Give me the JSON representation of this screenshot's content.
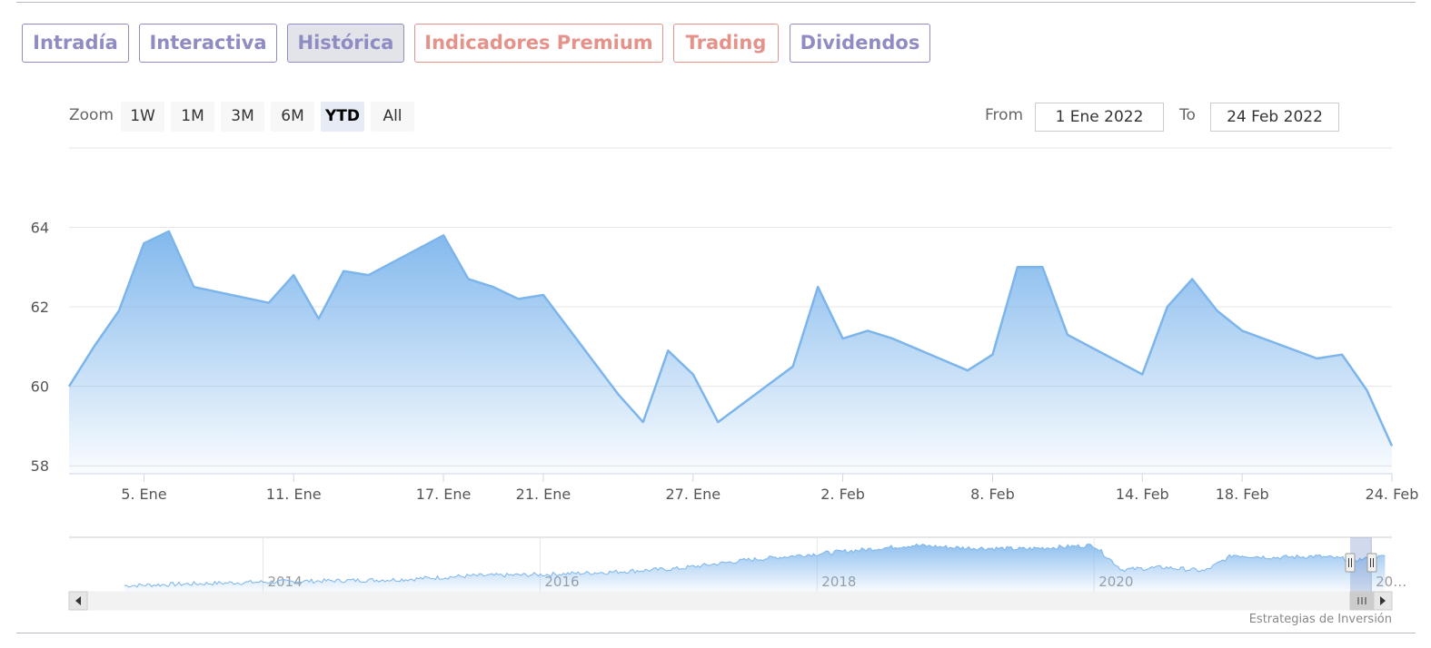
{
  "tabs": [
    {
      "label": "Intradía",
      "color": "#8f8cc4",
      "active": false
    },
    {
      "label": "Interactiva",
      "color": "#8f8cc4",
      "active": false
    },
    {
      "label": "Histórica",
      "color": "#8f8cc4",
      "active": true
    },
    {
      "label": "Indicadores Premium",
      "color": "#e4928a",
      "active": false
    },
    {
      "label": "Trading",
      "color": "#e4928a",
      "active": false
    },
    {
      "label": "Dividendos",
      "color": "#8f8cc4",
      "active": false
    }
  ],
  "range_selector": {
    "zoom_label": "Zoom",
    "buttons": [
      "1W",
      "1M",
      "3M",
      "6M",
      "YTD",
      "All"
    ],
    "selected": "YTD",
    "from_label": "From",
    "from_value": "1 Ene 2022",
    "to_label": "To",
    "to_value": "24 Feb 2022"
  },
  "credit": "Estrategias de Inversión",
  "chart_data": {
    "type": "area",
    "title": "",
    "xlabel": "",
    "ylabel": "",
    "x_tick_labels": [
      "5. Ene",
      "11. Ene",
      "17. Ene",
      "21. Ene",
      "27. Ene",
      "2. Feb",
      "8. Feb",
      "14. Feb",
      "18. Feb",
      "24. Feb"
    ],
    "y_ticks": [
      58,
      60,
      62,
      64
    ],
    "ylim": [
      57.8,
      66.0
    ],
    "grid": true,
    "color": "#7cb5ec",
    "series": [
      {
        "values": [
          [
            "2022-01-02",
            60.0
          ],
          [
            "2022-01-03",
            61.0
          ],
          [
            "2022-01-04",
            61.9
          ],
          [
            "2022-01-05",
            63.6
          ],
          [
            "2022-01-06",
            63.9
          ],
          [
            "2022-01-07",
            62.5
          ],
          [
            "2022-01-10",
            62.1
          ],
          [
            "2022-01-11",
            62.8
          ],
          [
            "2022-01-12",
            61.7
          ],
          [
            "2022-01-13",
            62.9
          ],
          [
            "2022-01-14",
            62.8
          ],
          [
            "2022-01-17",
            63.8
          ],
          [
            "2022-01-18",
            62.7
          ],
          [
            "2022-01-19",
            62.5
          ],
          [
            "2022-01-20",
            62.2
          ],
          [
            "2022-01-21",
            62.3
          ],
          [
            "2022-01-24",
            59.8
          ],
          [
            "2022-01-25",
            59.1
          ],
          [
            "2022-01-26",
            60.9
          ],
          [
            "2022-01-27",
            60.3
          ],
          [
            "2022-01-28",
            59.1
          ],
          [
            "2022-01-31",
            60.5
          ],
          [
            "2022-02-01",
            62.5
          ],
          [
            "2022-02-02",
            61.2
          ],
          [
            "2022-02-03",
            61.4
          ],
          [
            "2022-02-04",
            61.2
          ],
          [
            "2022-02-07",
            60.4
          ],
          [
            "2022-02-08",
            60.8
          ],
          [
            "2022-02-09",
            63.0
          ],
          [
            "2022-02-10",
            63.0
          ],
          [
            "2022-02-11",
            61.3
          ],
          [
            "2022-02-14",
            60.3
          ],
          [
            "2022-02-15",
            62.0
          ],
          [
            "2022-02-16",
            62.7
          ],
          [
            "2022-02-17",
            61.9
          ],
          [
            "2022-02-18",
            61.4
          ],
          [
            "2022-02-21",
            60.7
          ],
          [
            "2022-02-22",
            60.8
          ],
          [
            "2022-02-23",
            59.9
          ],
          [
            "2022-02-24",
            58.5
          ]
        ]
      }
    ],
    "navigator": {
      "x_tick_labels": [
        "2014",
        "2016",
        "2018",
        "2020",
        "20…"
      ],
      "values": [
        [
          2013.0,
          0.2
        ],
        [
          2013.5,
          0.35
        ],
        [
          2014.0,
          0.5
        ],
        [
          2014.5,
          0.6
        ],
        [
          2015.0,
          0.7
        ],
        [
          2015.5,
          1.0
        ],
        [
          2016.0,
          1.1
        ],
        [
          2016.5,
          1.3
        ],
        [
          2017.0,
          1.6
        ],
        [
          2017.5,
          2.3
        ],
        [
          2018.0,
          2.8
        ],
        [
          2018.5,
          3.3
        ],
        [
          2018.7,
          3.5
        ],
        [
          2019.0,
          3.3
        ],
        [
          2019.5,
          3.2
        ],
        [
          2020.0,
          3.5
        ],
        [
          2020.2,
          1.5
        ],
        [
          2020.5,
          1.7
        ],
        [
          2020.8,
          1.4
        ],
        [
          2021.0,
          2.7
        ],
        [
          2021.3,
          2.5
        ],
        [
          2021.6,
          2.6
        ],
        [
          2021.9,
          2.3
        ],
        [
          2022.1,
          2.6
        ]
      ]
    }
  }
}
